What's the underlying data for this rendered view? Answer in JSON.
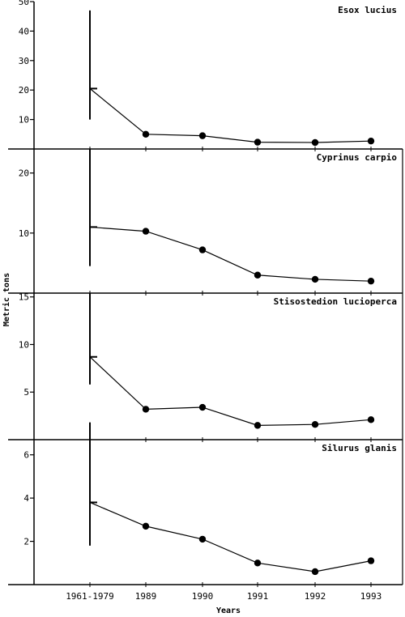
{
  "chart_data": [
    {
      "type": "line",
      "title": "Esox lucius",
      "categories": [
        "1961-1979",
        "1989",
        "1990",
        "1991",
        "1992",
        "1993"
      ],
      "values": [
        20.5,
        5,
        4.5,
        2.3,
        2.2,
        2.7
      ],
      "range_1961_1979": [
        10,
        47
      ],
      "ylim": [
        0,
        50
      ],
      "yticks": [
        10,
        20,
        30,
        40,
        50
      ]
    },
    {
      "type": "line",
      "title": "Cyprinus carpio",
      "categories": [
        "1961-1979",
        "1989",
        "1990",
        "1991",
        "1992",
        "1993"
      ],
      "values": [
        11,
        10.3,
        7.2,
        3,
        2.3,
        2
      ],
      "range_1961_1979": [
        4.5,
        24
      ],
      "ylim": [
        0,
        24
      ],
      "yticks": [
        10,
        20
      ]
    },
    {
      "type": "line",
      "title": "Stisostedion lucioperca",
      "categories": [
        "1961-1979",
        "1989",
        "1990",
        "1991",
        "1992",
        "1993"
      ],
      "values": [
        8.7,
        3.2,
        3.4,
        1.5,
        1.6,
        2.1
      ],
      "range_1961_1979": [
        5.8,
        15.4
      ],
      "ylim": [
        0,
        15.4
      ],
      "yticks": [
        5,
        10,
        15
      ]
    },
    {
      "type": "line",
      "title": "Silurus glanis",
      "categories": [
        "1961-1979",
        "1989",
        "1990",
        "1991",
        "1992",
        "1993"
      ],
      "values": [
        3.8,
        2.7,
        2.1,
        1,
        0.6,
        1.1
      ],
      "range_1961_1979": [
        1.8,
        7.5
      ],
      "ylim": [
        0,
        6.7
      ],
      "yticks": [
        2,
        4,
        6
      ]
    }
  ],
  "ylabel": "Metric tons",
  "xlabel": "Years",
  "colors": {
    "ink": "#000000",
    "background": "#ffffff"
  }
}
